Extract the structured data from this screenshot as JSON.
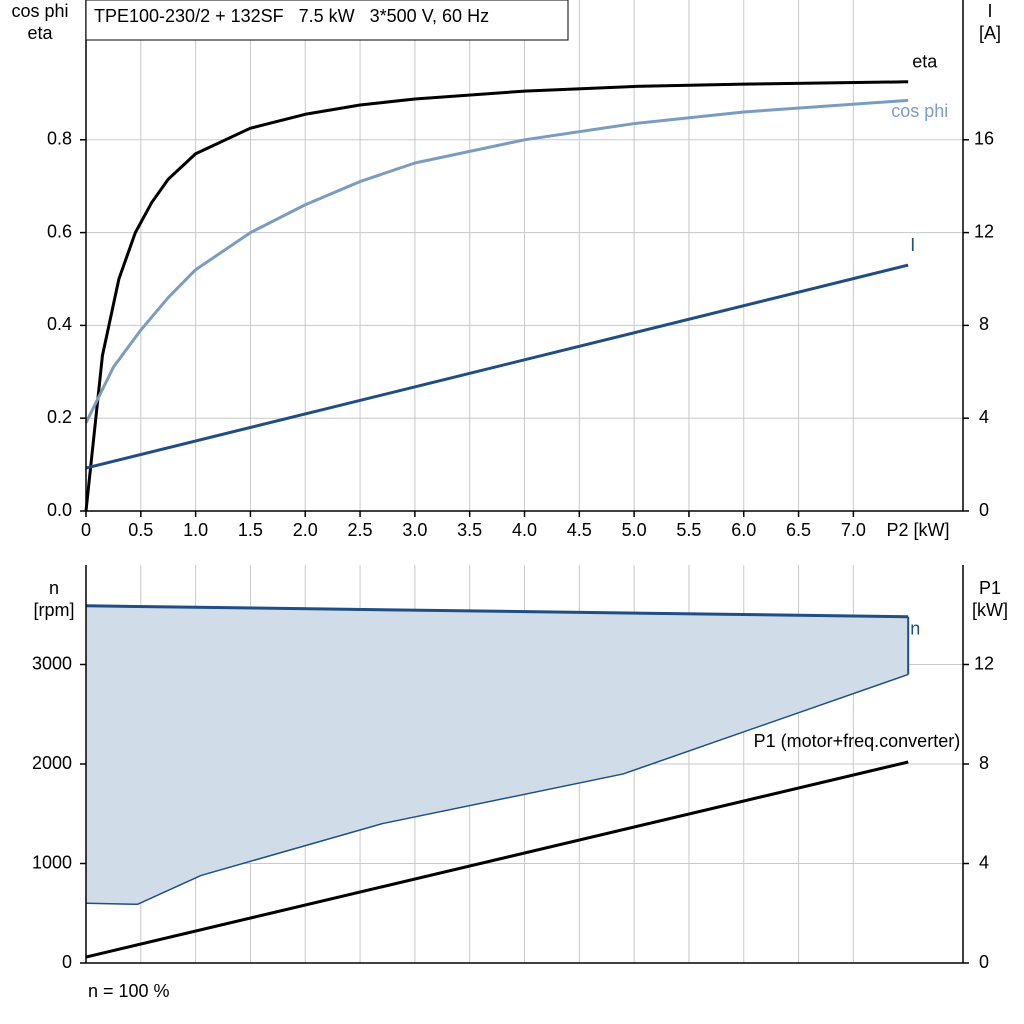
{
  "chart_data": [
    {
      "type": "line",
      "title": "TPE100-230/2 + 132SF   7.5 kW   3*500 V, 60 Hz",
      "ylabel": [
        "cos phi",
        "eta"
      ],
      "y2label": [
        "I",
        "[A]"
      ],
      "xlabel": "P2 [kW]",
      "xlim": [
        0,
        8
      ],
      "xticks": [
        0,
        0.5,
        {
          "value": 1,
          "label": "1.0"
        },
        1.5,
        {
          "value": 2,
          "label": "2.0"
        },
        2.5,
        {
          "value": 3,
          "label": "3.0"
        },
        3.5,
        {
          "value": 4,
          "label": "4.0"
        },
        4.5,
        {
          "value": 5,
          "label": "5.0"
        },
        5.5,
        {
          "value": 6,
          "label": "6.0"
        },
        6.5,
        {
          "value": 7,
          "label": "7.0"
        }
      ],
      "ylim": [
        0,
        1
      ],
      "yticks": [
        {
          "value": 0,
          "label": "0.0"
        },
        0.2,
        0.4,
        0.6,
        0.8
      ],
      "y2lim": [
        0,
        20
      ],
      "y2ticks": [
        0,
        4,
        8,
        12,
        16
      ],
      "grid": true,
      "series": [
        {
          "name": "eta",
          "color": "#000000",
          "line_width": 3,
          "x": [
            0,
            0.15,
            0.3,
            0.45,
            0.6,
            0.75,
            1.0,
            1.5,
            2.0,
            2.5,
            3.0,
            4.0,
            5.0,
            6.0,
            7.5
          ],
          "values": [
            0,
            0.335,
            0.5,
            0.6,
            0.665,
            0.715,
            0.77,
            0.825,
            0.855,
            0.875,
            0.888,
            0.905,
            0.915,
            0.92,
            0.925
          ]
        },
        {
          "name": "cos phi",
          "color": "#7a9cbf",
          "line_width": 3,
          "x": [
            0,
            0.25,
            0.5,
            0.75,
            1.0,
            1.5,
            2.0,
            2.5,
            3.0,
            4.0,
            5.0,
            6.0,
            7.5
          ],
          "values": [
            0.19,
            0.31,
            0.39,
            0.46,
            0.52,
            0.6,
            0.66,
            0.71,
            0.75,
            0.8,
            0.835,
            0.86,
            0.885
          ]
        },
        {
          "name": "I",
          "color": "#1f4e85",
          "line_width": 3,
          "axis": "y2",
          "x": [
            0,
            7.5
          ],
          "values": [
            1.85,
            10.6
          ]
        }
      ]
    },
    {
      "type": "line",
      "ylabel": [
        "n",
        "[rpm]"
      ],
      "y2label": [
        "P1",
        "[kW]"
      ],
      "note": "n = 100 %",
      "xlim": [
        0,
        8
      ],
      "xticks": [
        0,
        0.5,
        1,
        1.5,
        2,
        2.5,
        3,
        3.5,
        4,
        4.5,
        5,
        5.5,
        6,
        6.5,
        7
      ],
      "ylim": [
        0,
        4000
      ],
      "yticks": [
        0,
        1000,
        2000,
        3000
      ],
      "y2lim": [
        0,
        16
      ],
      "y2ticks": [
        0,
        4,
        8,
        12
      ],
      "grid": true,
      "fill_between": [
        0,
        1
      ],
      "fill_color": "#d0dce8",
      "series": [
        {
          "name": "n",
          "color": "#1f4e85",
          "line_width": 3,
          "x": [
            0,
            7.5
          ],
          "values": [
            3590,
            3480
          ]
        },
        {
          "color": "#1f4e85",
          "line_width": 1.5,
          "x": [
            0,
            0.47,
            1.05,
            2.7,
            4.9,
            7.5
          ],
          "values": [
            600,
            590,
            880,
            1400,
            1900,
            2900
          ]
        },
        {
          "name": "P1 (motor+freq.converter)",
          "color": "#000000",
          "line_width": 3,
          "axis": "y2",
          "x": [
            0,
            7.5
          ],
          "values": [
            0.24,
            8.08
          ]
        }
      ]
    }
  ]
}
